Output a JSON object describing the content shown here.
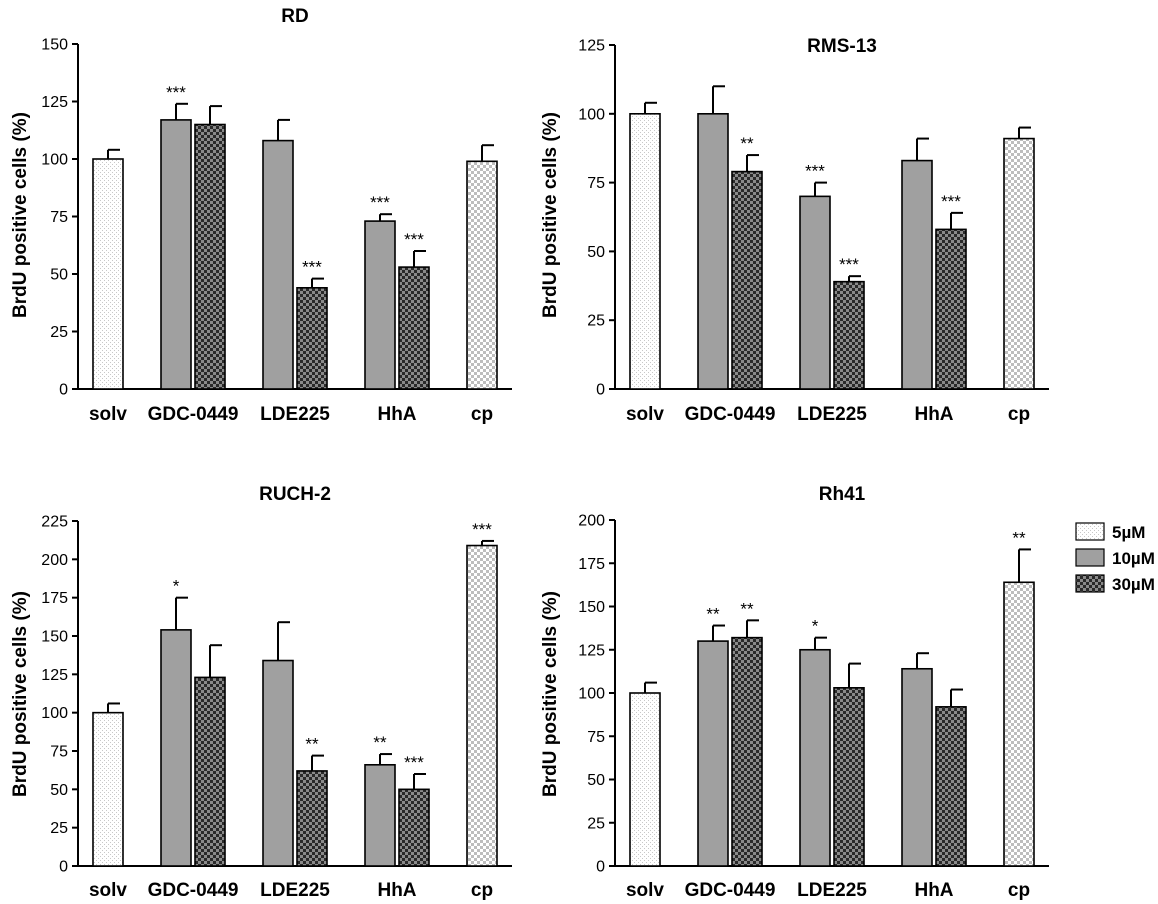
{
  "legend": [
    {
      "label": "5µM",
      "pattern": "dots"
    },
    {
      "label": "10µM",
      "pattern": "solid"
    },
    {
      "label": "30µM",
      "pattern": "checker"
    }
  ],
  "colors": {
    "gray": "#a0a0a0",
    "dark": "#3a3a3a",
    "axis": "#000000"
  },
  "chart_data": [
    {
      "type": "bar",
      "title": "RD",
      "ylabel": "BrdU positive cells (%)",
      "xlabel": "",
      "ylim": [
        0,
        150
      ],
      "yticks": [
        0,
        25,
        50,
        75,
        100,
        125,
        150
      ],
      "groups": [
        {
          "label": "solv",
          "bars": [
            {
              "series": "5µM",
              "value": 100,
              "error": 4,
              "sig": ""
            }
          ]
        },
        {
          "label": "GDC-0449",
          "bars": [
            {
              "series": "10µM",
              "value": 117,
              "error": 7,
              "sig": "***"
            },
            {
              "series": "30µM",
              "value": 115,
              "error": 8,
              "sig": ""
            }
          ]
        },
        {
          "label": "LDE225",
          "bars": [
            {
              "series": "10µM",
              "value": 108,
              "error": 9,
              "sig": ""
            },
            {
              "series": "30µM",
              "value": 44,
              "error": 4,
              "sig": "***"
            }
          ]
        },
        {
          "label": "HhA",
          "bars": [
            {
              "series": "10µM",
              "value": 73,
              "error": 3,
              "sig": "***"
            },
            {
              "series": "30µM",
              "value": 53,
              "error": 7,
              "sig": "***"
            }
          ]
        },
        {
          "label": "cp",
          "bars": [
            {
              "series": "5µM",
              "value": 99,
              "error": 7,
              "sig": ""
            }
          ]
        }
      ]
    },
    {
      "type": "bar",
      "title": "RMS-13",
      "ylabel": "BrdU positive cells (%)",
      "xlabel": "",
      "ylim": [
        0,
        125
      ],
      "yticks": [
        0,
        25,
        50,
        75,
        100,
        125
      ],
      "groups": [
        {
          "label": "solv",
          "bars": [
            {
              "series": "5µM",
              "value": 100,
              "error": 4,
              "sig": ""
            }
          ]
        },
        {
          "label": "GDC-0449",
          "bars": [
            {
              "series": "10µM",
              "value": 100,
              "error": 10,
              "sig": ""
            },
            {
              "series": "30µM",
              "value": 79,
              "error": 6,
              "sig": "**"
            }
          ]
        },
        {
          "label": "LDE225",
          "bars": [
            {
              "series": "10µM",
              "value": 70,
              "error": 5,
              "sig": "***"
            },
            {
              "series": "30µM",
              "value": 39,
              "error": 2,
              "sig": "***"
            }
          ]
        },
        {
          "label": "HhA",
          "bars": [
            {
              "series": "10µM",
              "value": 83,
              "error": 8,
              "sig": ""
            },
            {
              "series": "30µM",
              "value": 58,
              "error": 6,
              "sig": "***"
            }
          ]
        },
        {
          "label": "cp",
          "bars": [
            {
              "series": "5µM",
              "value": 91,
              "error": 4,
              "sig": ""
            }
          ]
        }
      ]
    },
    {
      "type": "bar",
      "title": "RUCH-2",
      "ylabel": "BrdU positive cells (%)",
      "xlabel": "",
      "ylim": [
        0,
        225
      ],
      "yticks": [
        0,
        25,
        50,
        75,
        100,
        125,
        150,
        175,
        200,
        225
      ],
      "groups": [
        {
          "label": "solv",
          "bars": [
            {
              "series": "5µM",
              "value": 100,
              "error": 6,
              "sig": ""
            }
          ]
        },
        {
          "label": "GDC-0449",
          "bars": [
            {
              "series": "10µM",
              "value": 154,
              "error": 21,
              "sig": "*"
            },
            {
              "series": "30µM",
              "value": 123,
              "error": 21,
              "sig": ""
            }
          ]
        },
        {
          "label": "LDE225",
          "bars": [
            {
              "series": "10µM",
              "value": 134,
              "error": 25,
              "sig": ""
            },
            {
              "series": "30µM",
              "value": 62,
              "error": 10,
              "sig": "**"
            }
          ]
        },
        {
          "label": "HhA",
          "bars": [
            {
              "series": "10µM",
              "value": 66,
              "error": 7,
              "sig": "**"
            },
            {
              "series": "30µM",
              "value": 50,
              "error": 10,
              "sig": "***"
            }
          ]
        },
        {
          "label": "cp",
          "bars": [
            {
              "series": "5µM",
              "value": 209,
              "error": 3,
              "sig": "***"
            }
          ]
        }
      ]
    },
    {
      "type": "bar",
      "title": "Rh41",
      "ylabel": "BrdU positive cells (%)",
      "xlabel": "",
      "ylim": [
        0,
        200
      ],
      "yticks": [
        0,
        25,
        50,
        75,
        100,
        125,
        150,
        175,
        200
      ],
      "groups": [
        {
          "label": "solv",
          "bars": [
            {
              "series": "5µM",
              "value": 100,
              "error": 6,
              "sig": ""
            }
          ]
        },
        {
          "label": "GDC-0449",
          "bars": [
            {
              "series": "10µM",
              "value": 130,
              "error": 9,
              "sig": "**"
            },
            {
              "series": "30µM",
              "value": 132,
              "error": 10,
              "sig": "**"
            }
          ]
        },
        {
          "label": "LDE225",
          "bars": [
            {
              "series": "10µM",
              "value": 125,
              "error": 7,
              "sig": "*"
            },
            {
              "series": "30µM",
              "value": 103,
              "error": 14,
              "sig": ""
            }
          ]
        },
        {
          "label": "HhA",
          "bars": [
            {
              "series": "10µM",
              "value": 114,
              "error": 9,
              "sig": ""
            },
            {
              "series": "30µM",
              "value": 92,
              "error": 10,
              "sig": ""
            }
          ]
        },
        {
          "label": "cp",
          "bars": [
            {
              "series": "5µM",
              "value": 164,
              "error": 19,
              "sig": "**"
            }
          ]
        }
      ]
    }
  ]
}
